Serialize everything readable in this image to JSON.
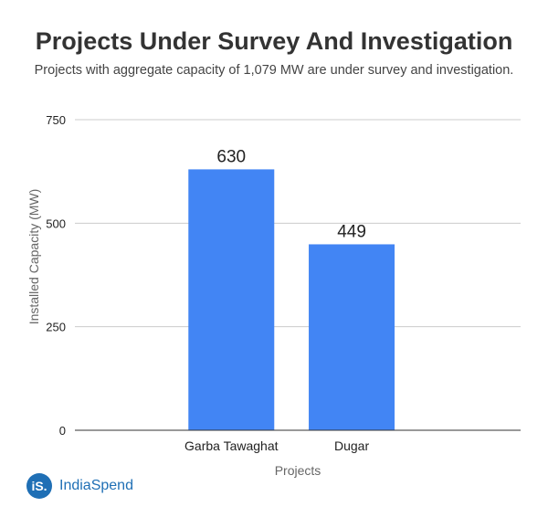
{
  "chart_data": {
    "type": "bar",
    "title": "Projects Under Survey And Investigation",
    "subtitle": "Projects with aggregate capacity of 1,079 MW are under survey and investigation.",
    "xlabel": "Projects",
    "ylabel": "Installed Capacity (MW)",
    "categories": [
      "Garba Tawaghat",
      "Dugar"
    ],
    "values": [
      630,
      449
    ],
    "data_labels": [
      "630",
      "449"
    ],
    "yticks": [
      0,
      250,
      500,
      750
    ],
    "ylim": [
      0,
      750
    ],
    "grid": true,
    "bar_color": "#4285f4"
  },
  "branding": {
    "logo_mark": "iS.",
    "logo_text": "IndiaSpend",
    "logo_color": "#1f6fb5"
  }
}
